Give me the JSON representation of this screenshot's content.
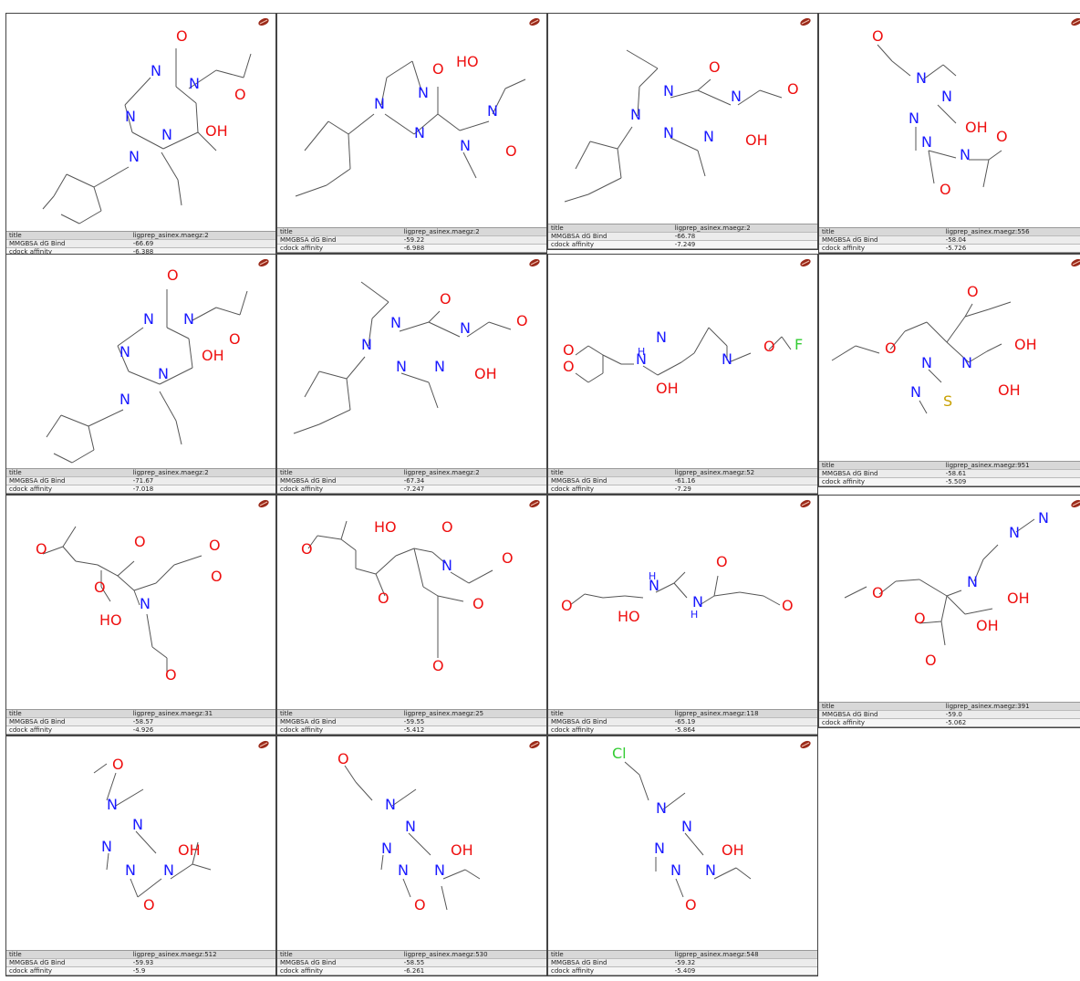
{
  "colors": {
    "bond": "#555555",
    "nitrogen": "#1a1aff",
    "oxygen": "#ee1111",
    "sulfur": "#c8a000",
    "fluorine": "#33cc33",
    "chlorine": "#33cc33",
    "badge": "#9b2a1a"
  },
  "icons": {
    "badge": "molecule-badge-icon"
  },
  "row_labels": {
    "title": "title",
    "dg": "MMGBSA dG Bind",
    "cdock": "cdock affinity"
  },
  "cells": [
    {
      "title": "ligprep_asinex.maegz:2",
      "dg": "-66.69",
      "cdock": "-6.388"
    },
    {
      "title": "ligprep_asinex.maegz:2",
      "dg": "-59.22",
      "cdock": "-6.988"
    },
    {
      "title": "ligprep_asinex.maegz:2",
      "dg": "-66.78",
      "cdock": "-7.249"
    },
    {
      "title": "ligprep_asinex.maegz:556",
      "dg": "-58.04",
      "cdock": "-5.726"
    },
    {
      "title": "ligprep_asinex.maegz:2",
      "dg": "-71.67",
      "cdock": "-7.018"
    },
    {
      "title": "ligprep_asinex.maegz:2",
      "dg": "-67.34",
      "cdock": "-7.247"
    },
    {
      "title": "ligprep_asinex.maegz:52",
      "dg": "-61.16",
      "cdock": "-7.29"
    },
    {
      "title": "ligprep_asinex.maegz:951",
      "dg": "-58.61",
      "cdock": "-5.509"
    },
    {
      "title": "ligprep_asinex.maegz:31",
      "dg": "-58.57",
      "cdock": "-4.926"
    },
    {
      "title": "ligprep_asinex.maegz:25",
      "dg": "-59.55",
      "cdock": "-5.412"
    },
    {
      "title": "ligprep_asinex.maegz:118",
      "dg": "-65.19",
      "cdock": "-5.864"
    },
    {
      "title": "ligprep_asinex.maegz:391",
      "dg": "-59.0",
      "cdock": "-5.062"
    },
    {
      "title": "ligprep_asinex.maegz:512",
      "dg": "-59.93",
      "cdock": "-5.9"
    },
    {
      "title": "ligprep_asinex.maegz:530",
      "dg": "-58.55",
      "cdock": "-6.261"
    },
    {
      "title": "ligprep_asinex.maegz:548",
      "dg": "-59.32",
      "cdock": "-5.409"
    }
  ]
}
